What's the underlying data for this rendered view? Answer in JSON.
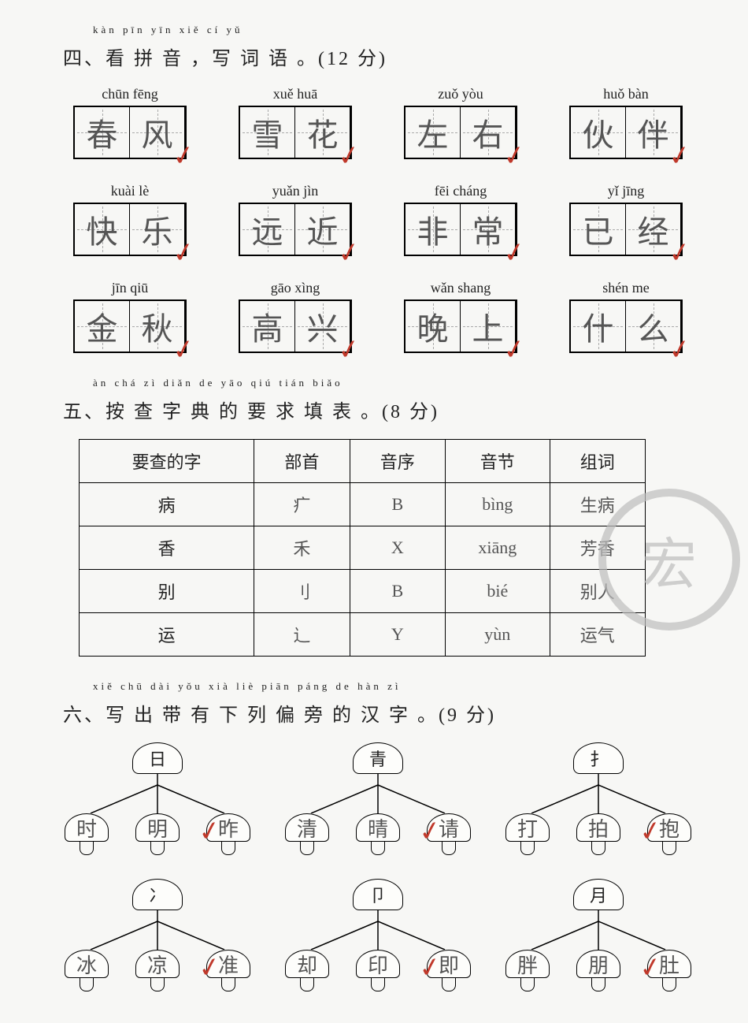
{
  "section4": {
    "ruby": "kàn  pīn  yīn       xiě  cí  yǔ",
    "title": "四、看 拼 音 ，写 词 语 。(12 分)",
    "items": [
      {
        "pinyin": "chūn fēng",
        "c1": "春",
        "c2": "风"
      },
      {
        "pinyin": "xuě  huā",
        "c1": "雪",
        "c2": "花"
      },
      {
        "pinyin": "zuǒ  yòu",
        "c1": "左",
        "c2": "右"
      },
      {
        "pinyin": "huǒ  bàn",
        "c1": "伙",
        "c2": "伴"
      },
      {
        "pinyin": "kuài  lè",
        "c1": "快",
        "c2": "乐"
      },
      {
        "pinyin": "yuǎn  jìn",
        "c1": "远",
        "c2": "近"
      },
      {
        "pinyin": "fēi  cháng",
        "c1": "非",
        "c2": "常"
      },
      {
        "pinyin": "yǐ   jīng",
        "c1": "已",
        "c2": "经"
      },
      {
        "pinyin": "jīn   qiū",
        "c1": "金",
        "c2": "秋"
      },
      {
        "pinyin": "gāo  xìng",
        "c1": "高",
        "c2": "兴"
      },
      {
        "pinyin": "wǎn shang",
        "c1": "晚",
        "c2": "上"
      },
      {
        "pinyin": "shén  me",
        "c1": "什",
        "c2": "么"
      }
    ]
  },
  "section5": {
    "ruby": "àn  chá  zì  diǎn  de  yāo  qiú  tián  biǎo",
    "title": "五、按 查 字 典 的 要 求 填 表 。(8 分)",
    "headers": [
      "要查的字",
      "部首",
      "音序",
      "音节",
      "组词"
    ],
    "rows": [
      {
        "zi": "病",
        "bushou": "疒",
        "yinxu": "B",
        "yinjie": "bìng",
        "zuci": "生病"
      },
      {
        "zi": "香",
        "bushou": "禾",
        "yinxu": "X",
        "yinjie": "xiāng",
        "zuci": "芳香"
      },
      {
        "zi": "别",
        "bushou": "刂",
        "yinxu": "B",
        "yinjie": "bié",
        "zuci": "别人"
      },
      {
        "zi": "运",
        "bushou": "辶",
        "yinxu": "Y",
        "yinjie": "yùn",
        "zuci": "运气"
      }
    ]
  },
  "section6": {
    "ruby": "xiě  chū  dài  yǒu  xià  liè  piān  páng  de  hàn  zì",
    "title": "六、写 出 带 有 下 列 偏 旁 的 汉 字 。(9 分)",
    "trees": [
      {
        "head": "日",
        "a": "时",
        "b": "明",
        "c": "昨"
      },
      {
        "head": "青",
        "a": "清",
        "b": "晴",
        "c": "请"
      },
      {
        "head": "扌",
        "a": "打",
        "b": "拍",
        "c": "抱"
      },
      {
        "head": "冫",
        "a": "冰",
        "b": "凉",
        "c": "准"
      },
      {
        "head": "卩",
        "a": "却",
        "b": "印",
        "c": "即"
      },
      {
        "head": "月",
        "a": "胖",
        "b": "朋",
        "c": "肚"
      }
    ]
  },
  "stamp_text": "宏",
  "check_mark": "✓"
}
